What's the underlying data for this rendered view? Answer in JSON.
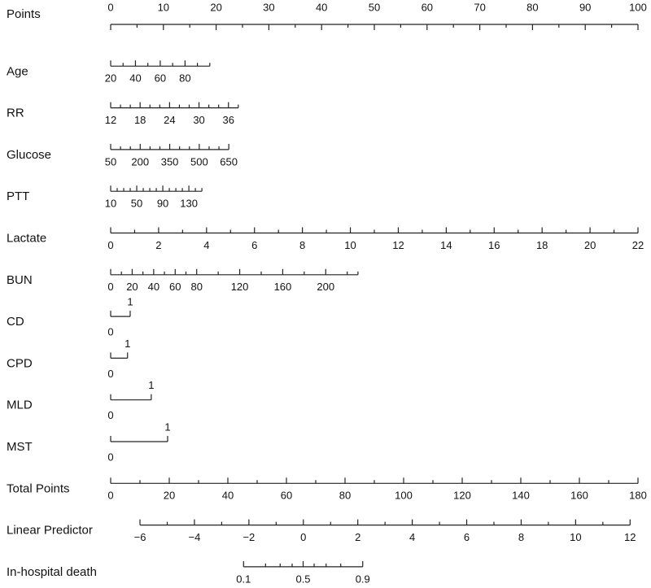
{
  "chart_data": {
    "type": "nomogram",
    "rows": [
      {
        "label": "Points",
        "xlim": [
          0,
          100
        ],
        "points": [
          0,
          100
        ],
        "tick_dir": "down",
        "ticks": [
          0,
          10,
          20,
          30,
          40,
          50,
          60,
          70,
          80,
          90,
          100
        ],
        "minor_ticks": [
          5,
          15,
          25,
          35,
          45,
          55,
          65,
          75,
          85,
          95
        ]
      },
      {
        "label": "Age",
        "xlim": [
          20,
          100
        ],
        "points": [
          0,
          18.8
        ],
        "ticks": [
          20,
          40,
          60,
          80
        ],
        "minor_ticks": [
          30,
          50,
          70,
          90,
          100
        ]
      },
      {
        "label": "RR",
        "xlim": [
          12,
          38
        ],
        "points": [
          0,
          24.2
        ],
        "ticks": [
          12,
          18,
          24,
          30,
          36
        ],
        "minor_ticks": [
          14,
          16,
          20,
          22,
          26,
          28,
          32,
          34,
          38
        ]
      },
      {
        "label": "Glucose",
        "xlim": [
          50,
          650
        ],
        "points": [
          0,
          22.4
        ],
        "ticks": [
          50,
          200,
          350,
          500,
          650
        ],
        "minor_ticks": [
          100,
          150,
          250,
          300,
          400,
          450,
          550,
          600
        ]
      },
      {
        "label": "PTT",
        "xlim": [
          10,
          150
        ],
        "points": [
          0,
          17.3
        ],
        "ticks": [
          10,
          50,
          90,
          130
        ],
        "minor_ticks": [
          20,
          30,
          40,
          60,
          70,
          80,
          100,
          110,
          120,
          140,
          150
        ]
      },
      {
        "label": "Lactate",
        "xlim": [
          0,
          22
        ],
        "points": [
          0,
          100
        ],
        "ticks": [
          0,
          2,
          4,
          6,
          8,
          10,
          12,
          14,
          16,
          18,
          20,
          22
        ],
        "minor_ticks": [
          1,
          3,
          5,
          7,
          9,
          11,
          13,
          15,
          17,
          19,
          21
        ]
      },
      {
        "label": "BUN",
        "xlim": [
          0,
          230
        ],
        "points": [
          0,
          46.9
        ],
        "ticks": [
          0,
          20,
          40,
          60,
          80,
          120,
          160,
          200
        ],
        "minor_ticks": [
          10,
          30,
          50,
          70,
          100,
          140,
          180,
          220,
          230
        ]
      },
      {
        "label": "CD",
        "xlim": [
          0,
          1
        ],
        "points": [
          0,
          3.7
        ],
        "alternate": true,
        "ticks": [
          0,
          1
        ],
        "minor_ticks": []
      },
      {
        "label": "CPD",
        "xlim": [
          0,
          1
        ],
        "points": [
          0,
          3.2
        ],
        "alternate": true,
        "ticks": [
          0,
          1
        ],
        "minor_ticks": []
      },
      {
        "label": "MLD",
        "xlim": [
          0,
          1
        ],
        "points": [
          0,
          7.7
        ],
        "alternate": true,
        "ticks": [
          0,
          1
        ],
        "minor_ticks": []
      },
      {
        "label": "MST",
        "xlim": [
          0,
          1
        ],
        "points": [
          0,
          10.8
        ],
        "alternate": true,
        "ticks": [
          0,
          1
        ],
        "minor_ticks": []
      },
      {
        "label": "Total Points",
        "xlim": [
          0,
          180
        ],
        "points": [
          0,
          100
        ],
        "ticks": [
          0,
          20,
          40,
          60,
          80,
          100,
          120,
          140,
          160,
          180
        ],
        "minor_ticks": [
          10,
          30,
          50,
          70,
          90,
          110,
          130,
          150,
          170
        ]
      },
      {
        "label": "Linear Predictor",
        "xlim": [
          -6,
          12
        ],
        "points": [
          5.56,
          98.5
        ],
        "ticks": [
          {
            "value": -6,
            "label": "−6"
          },
          {
            "value": -4,
            "label": "−4"
          },
          {
            "value": -2,
            "label": "−2"
          },
          0,
          2,
          4,
          6,
          8,
          10,
          12
        ],
        "minor_ticks": [
          -5,
          -3,
          -1,
          1,
          3,
          5,
          7,
          9,
          11
        ]
      },
      {
        "label": "In-hospital death",
        "xlim": [
          0.1,
          0.9
        ],
        "points": [
          25.2,
          47.8
        ],
        "scale": "logit",
        "ticks": [
          0.1,
          0.5,
          0.9
        ],
        "minor_ticks": [
          0.2,
          0.3,
          0.4,
          0.6,
          0.7,
          0.8
        ]
      }
    ]
  }
}
